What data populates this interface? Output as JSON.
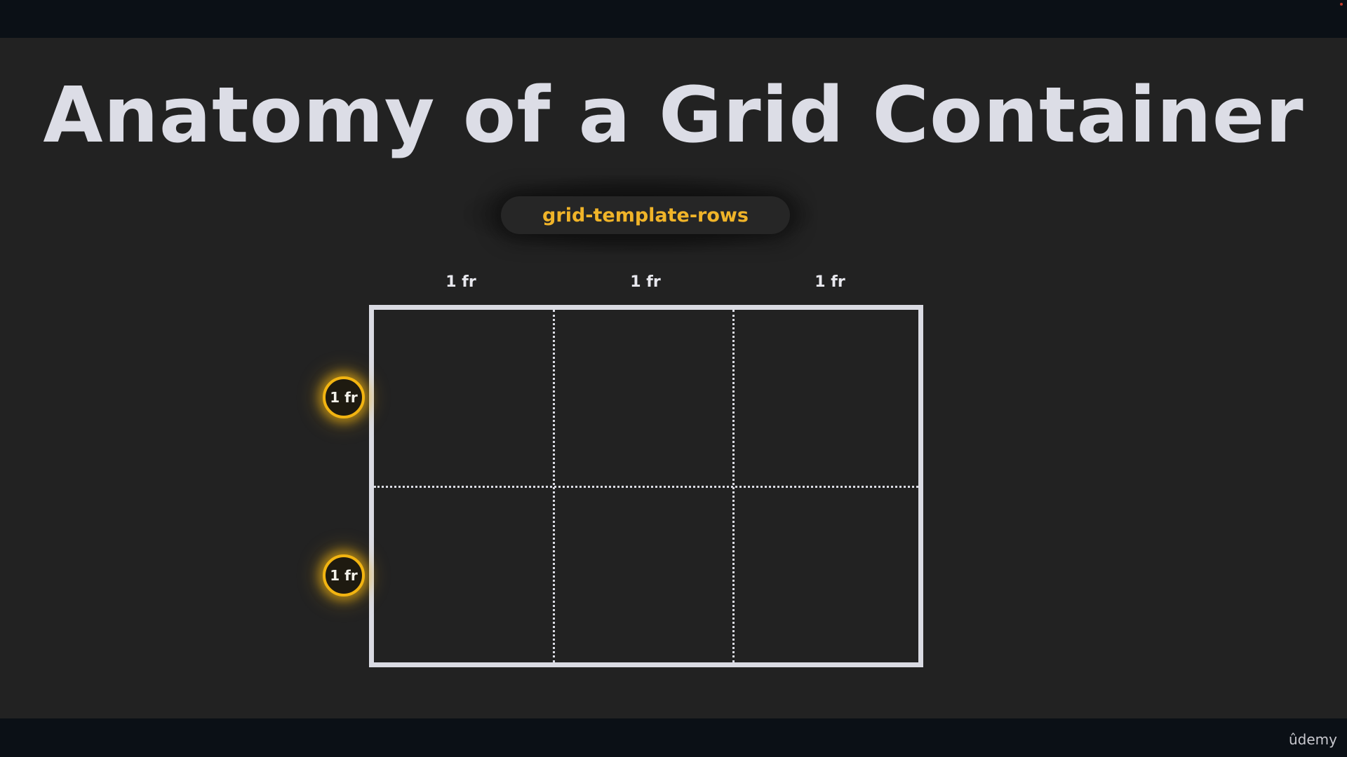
{
  "slide": {
    "title": "Anatomy of a Grid Container",
    "property_label": "grid-template-rows"
  },
  "grid": {
    "columns": [
      "1 fr",
      "1 fr",
      "1 fr"
    ],
    "rows": [
      "1 fr",
      "1 fr"
    ]
  },
  "footer": {
    "logo_text": "ûdemy"
  },
  "colors": {
    "background": "#222222",
    "title": "#dcdde6",
    "accent": "#f0b429",
    "grid_line": "#dadbe3"
  }
}
